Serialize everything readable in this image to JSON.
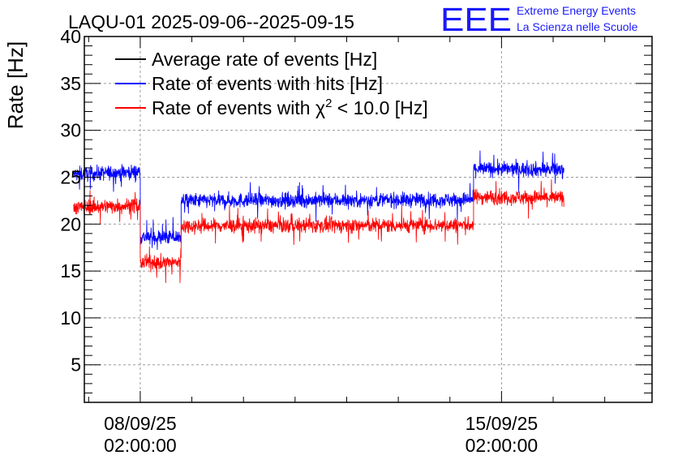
{
  "header": {
    "title": "LAQU-01 2025-09-06--2025-09-15",
    "logo_text": "EEE",
    "logo_line1": "Extreme Energy Events",
    "logo_line2": "La Scienza nelle Scuole"
  },
  "colors": {
    "logo": "#1a1aff",
    "avg": "#000000",
    "hits": "#0000ff",
    "chi2": "#ff0000",
    "grid": "#9a9a9a"
  },
  "chart_data": {
    "type": "line",
    "ylabel": "Rate [Hz]",
    "ylim": [
      1,
      40
    ],
    "y_ticks": [
      "5",
      "10",
      "15",
      "20",
      "25",
      "30",
      "35",
      "40"
    ],
    "y_tick_values": [
      5,
      10,
      15,
      20,
      25,
      30,
      35,
      40
    ],
    "xlim": [
      "2025-09-07 00:00",
      "2025-09-18 00:00"
    ],
    "x_ticks": [
      {
        "value": "2025-09-08 02:00",
        "date": "08/09/25",
        "time": "02:00:00"
      },
      {
        "value": "2025-09-15 02:00",
        "date": "15/09/25",
        "time": "02:00:00"
      }
    ],
    "grid": true,
    "legend": {
      "placement": "top-left",
      "entries": [
        {
          "prefix": "Average rate of events [Hz]",
          "sup": "",
          "suffix": ""
        },
        {
          "prefix": "Rate of events with hits [Hz]",
          "sup": "",
          "suffix": ""
        },
        {
          "prefix": "Rate of events with χ",
          "sup": "2",
          "suffix": " < 10.0 [Hz]"
        }
      ]
    },
    "series": [
      {
        "name": "Rate of events with hits [Hz]",
        "noise": 0.7,
        "segments": [
          {
            "start": "2025-09-06 19:00",
            "end": "2025-09-08 02:00",
            "level_start": 25.3,
            "level_end": 25.6
          },
          {
            "start": "2025-09-08 02:00",
            "end": "2025-09-08 21:00",
            "level_start": 18.6,
            "level_end": 18.6
          },
          {
            "start": "2025-09-08 21:00",
            "end": "2025-09-14 13:00",
            "level_start": 22.5,
            "level_end": 22.6
          },
          {
            "start": "2025-09-14 13:00",
            "end": "2025-09-16 07:00",
            "level_start": 25.9,
            "level_end": 25.8
          }
        ]
      },
      {
        "name": "Rate of events with χ2 < 10.0 [Hz]",
        "noise": 0.7,
        "segments": [
          {
            "start": "2025-09-06 19:00",
            "end": "2025-09-08 02:00",
            "level_start": 21.8,
            "level_end": 22.0
          },
          {
            "start": "2025-09-08 02:00",
            "end": "2025-09-08 21:00",
            "level_start": 15.9,
            "level_end": 15.9
          },
          {
            "start": "2025-09-08 21:00",
            "end": "2025-09-14 13:00",
            "level_start": 19.8,
            "level_end": 19.9
          },
          {
            "start": "2025-09-14 13:00",
            "end": "2025-09-16 07:00",
            "level_start": 22.9,
            "level_end": 22.8
          }
        ]
      }
    ]
  }
}
